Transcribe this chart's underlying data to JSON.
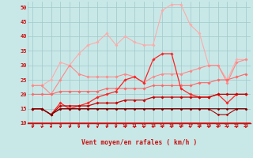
{
  "x": [
    0,
    1,
    2,
    3,
    4,
    5,
    6,
    7,
    8,
    9,
    10,
    11,
    12,
    13,
    14,
    15,
    16,
    17,
    18,
    19,
    20,
    21,
    22,
    23
  ],
  "lines": [
    {
      "color": "#ffaaaa",
      "lw": 0.8,
      "marker": "D",
      "ms": 1.8,
      "y": [
        23,
        23,
        25,
        31,
        30,
        34,
        37,
        38,
        41,
        37,
        40,
        38,
        37,
        37,
        49,
        51,
        51,
        44,
        41,
        30,
        30,
        25,
        32,
        32
      ]
    },
    {
      "color": "#ff8888",
      "lw": 0.8,
      "marker": "D",
      "ms": 1.8,
      "y": [
        23,
        23,
        20,
        25,
        30,
        27,
        26,
        26,
        26,
        26,
        27,
        26,
        24,
        26,
        27,
        27,
        27,
        28,
        29,
        30,
        30,
        24,
        31,
        32
      ]
    },
    {
      "color": "#ff6666",
      "lw": 0.8,
      "marker": "D",
      "ms": 1.8,
      "y": [
        20,
        20,
        20,
        21,
        21,
        21,
        21,
        21,
        22,
        22,
        22,
        22,
        22,
        23,
        23,
        23,
        23,
        23,
        24,
        24,
        25,
        25,
        26,
        27
      ]
    },
    {
      "color": "#ff2222",
      "lw": 0.9,
      "marker": "D",
      "ms": 1.8,
      "y": [
        15,
        15,
        13,
        17,
        15,
        16,
        17,
        19,
        20,
        21,
        25,
        26,
        24,
        32,
        34,
        34,
        22,
        20,
        19,
        19,
        20,
        17,
        20,
        20
      ]
    },
    {
      "color": "#cc0000",
      "lw": 0.9,
      "marker": "D",
      "ms": 1.8,
      "y": [
        15,
        15,
        13,
        16,
        16,
        16,
        16,
        17,
        17,
        17,
        18,
        18,
        18,
        19,
        19,
        19,
        19,
        19,
        19,
        19,
        20,
        20,
        20,
        20
      ]
    },
    {
      "color": "#aa0000",
      "lw": 0.8,
      "marker": "D",
      "ms": 1.5,
      "y": [
        15,
        15,
        13,
        15,
        15,
        15,
        15,
        15,
        15,
        15,
        15,
        15,
        15,
        15,
        15,
        15,
        15,
        15,
        15,
        15,
        13,
        13,
        15,
        15
      ]
    },
    {
      "color": "#770000",
      "lw": 0.8,
      "marker": "D",
      "ms": 1.5,
      "y": [
        15,
        15,
        13,
        15,
        15,
        15,
        15,
        15,
        15,
        15,
        15,
        15,
        15,
        15,
        15,
        15,
        15,
        15,
        15,
        15,
        15,
        15,
        15,
        15
      ]
    }
  ],
  "xlabel": "Vent moyen/en rafales ( km/h )",
  "ylim": [
    10,
    52
  ],
  "xlim": [
    -0.5,
    23.5
  ],
  "yticks": [
    10,
    15,
    20,
    25,
    30,
    35,
    40,
    45,
    50
  ],
  "xticks": [
    0,
    1,
    2,
    3,
    4,
    5,
    6,
    7,
    8,
    9,
    10,
    11,
    12,
    13,
    14,
    15,
    16,
    17,
    18,
    19,
    20,
    21,
    22,
    23
  ],
  "bg_color": "#c8e8e8",
  "grid_color": "#a0c8c8",
  "line_color": "#cc1111",
  "xlabel_color": "#cc1111",
  "tick_color": "#cc1111"
}
